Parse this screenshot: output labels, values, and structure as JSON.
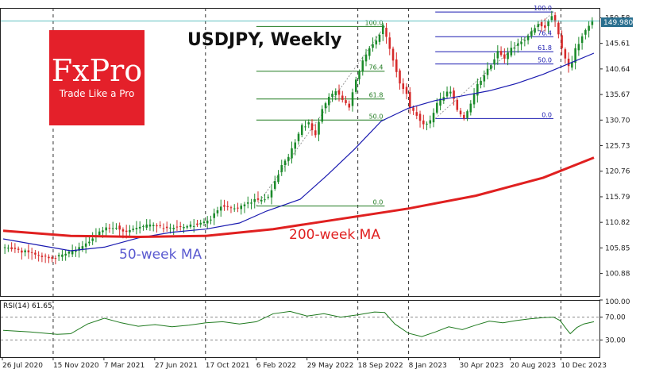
{
  "chart_data": {
    "type": "candlestick",
    "title": "USDJPY, Weekly",
    "symbol": "USDJPY",
    "timeframe": "Weekly",
    "price_axis": {
      "ticks": [
        100.88,
        105.85,
        110.82,
        115.79,
        120.76,
        125.73,
        130.7,
        135.67,
        140.64,
        145.61,
        150.58
      ],
      "ylim": [
        96.5,
        152.5
      ],
      "current_price": 149.98,
      "current_price_label": "149.980"
    },
    "x_axis": {
      "ticks": [
        "26 Jul 2020",
        "15 Nov 2020",
        "7 Mar 2021",
        "27 Jun 2021",
        "17 Oct 2021",
        "6 Feb 2022",
        "29 May 2022",
        "18 Sep 2022",
        "8 Jan 2023",
        "30 Apr 2023",
        "20 Aug 2023",
        "10 Dec 2023"
      ],
      "grid_ticks": [
        "15 Nov 2020",
        "17 Oct 2021",
        "18 Sep 2022",
        "8 Jan 2023",
        "10 Dec 2023"
      ]
    },
    "price_path": [
      [
        0,
        106.0
      ],
      [
        4,
        105.6
      ],
      [
        8,
        104.9
      ],
      [
        12,
        104.3
      ],
      [
        14,
        104.1
      ],
      [
        16,
        104.0
      ],
      [
        18,
        104.5
      ],
      [
        20,
        104.9
      ],
      [
        22,
        105.5
      ],
      [
        25,
        106.5
      ],
      [
        28,
        108.5
      ],
      [
        31,
        109.7
      ],
      [
        34,
        110.0
      ],
      [
        37,
        108.9
      ],
      [
        40,
        109.5
      ],
      [
        43,
        110.2
      ],
      [
        46,
        110.0
      ],
      [
        49,
        109.7
      ],
      [
        52,
        109.8
      ],
      [
        55,
        110.1
      ],
      [
        58,
        110.4
      ],
      [
        61,
        111.0
      ],
      [
        63,
        112.3
      ],
      [
        65,
        114.0
      ],
      [
        67,
        113.7
      ],
      [
        69,
        113.5
      ],
      [
        71,
        113.9
      ],
      [
        73,
        114.6
      ],
      [
        75,
        115.3
      ],
      [
        77,
        115.0
      ],
      [
        79,
        115.9
      ],
      [
        81,
        118.7
      ],
      [
        83,
        121.9
      ],
      [
        85,
        123.5
      ],
      [
        87,
        126.5
      ],
      [
        89,
        129.5
      ],
      [
        91,
        130.0
      ],
      [
        93,
        127.6
      ],
      [
        95,
        132.7
      ],
      [
        97,
        135.0
      ],
      [
        99,
        136.5
      ],
      [
        101,
        134.5
      ],
      [
        103,
        133.4
      ],
      [
        105,
        138.8
      ],
      [
        107,
        142.0
      ],
      [
        109,
        144.5
      ],
      [
        111,
        146.0
      ],
      [
        113,
        148.9
      ],
      [
        114,
        146.8
      ],
      [
        116,
        142.4
      ],
      [
        118,
        138.0
      ],
      [
        120,
        136.0
      ],
      [
        121,
        133.0
      ],
      [
        123,
        131.8
      ],
      [
        125,
        129.6
      ],
      [
        127,
        130.5
      ],
      [
        129,
        133.8
      ],
      [
        131,
        135.4
      ],
      [
        133,
        136.5
      ],
      [
        135,
        132.5
      ],
      [
        137,
        131.0
      ],
      [
        139,
        133.9
      ],
      [
        141,
        137.5
      ],
      [
        143,
        139.5
      ],
      [
        145,
        141.5
      ],
      [
        147,
        144.0
      ],
      [
        149,
        142.5
      ],
      [
        151,
        144.5
      ],
      [
        153,
        145.5
      ],
      [
        155,
        146.5
      ],
      [
        157,
        147.8
      ],
      [
        159,
        149.5
      ],
      [
        161,
        148.8
      ],
      [
        163,
        151.0
      ],
      [
        164,
        149.5
      ],
      [
        165,
        147.5
      ],
      [
        166,
        144.5
      ],
      [
        167,
        142.5
      ],
      [
        168,
        141.0
      ],
      [
        169,
        142.0
      ],
      [
        170,
        144.5
      ],
      [
        172,
        147.0
      ],
      [
        173,
        148.1
      ],
      [
        174,
        149.2
      ],
      [
        175,
        150.0
      ]
    ],
    "series": [
      {
        "name": "50-week MA",
        "color": "#1a1ab0",
        "points": [
          [
            0,
            107.6
          ],
          [
            20,
            105.3
          ],
          [
            30,
            106.0
          ],
          [
            40,
            107.8
          ],
          [
            50,
            108.9
          ],
          [
            60,
            109.5
          ],
          [
            70,
            110.7
          ],
          [
            78,
            113.0
          ],
          [
            88,
            115.3
          ],
          [
            96,
            120.0
          ],
          [
            104,
            125.0
          ],
          [
            112,
            130.5
          ],
          [
            120,
            133.0
          ],
          [
            128,
            134.5
          ],
          [
            136,
            135.4
          ],
          [
            144,
            136.4
          ],
          [
            152,
            137.8
          ],
          [
            160,
            139.6
          ],
          [
            168,
            141.8
          ],
          [
            175,
            143.7
          ]
        ]
      },
      {
        "name": "200-week MA",
        "color": "#e02020",
        "points": [
          [
            0,
            109.2
          ],
          [
            20,
            108.2
          ],
          [
            40,
            108.0
          ],
          [
            60,
            108.2
          ],
          [
            80,
            109.5
          ],
          [
            100,
            111.5
          ],
          [
            120,
            113.5
          ],
          [
            140,
            116.0
          ],
          [
            160,
            119.5
          ],
          [
            175,
            123.4
          ]
        ]
      }
    ],
    "annotations": [
      "50-week MA",
      "200-week MA"
    ],
    "fibonacci_1": {
      "color": "#1f7a1f",
      "x_start": 75,
      "x_end": 113,
      "levels": [
        {
          "label": "100.0",
          "price": 148.9
        },
        {
          "label": "76.4",
          "price": 140.2
        },
        {
          "label": "61.8",
          "price": 134.8
        },
        {
          "label": "50.0",
          "price": 130.7
        },
        {
          "label": "0.0",
          "price": 114.0
        }
      ]
    },
    "fibonacci_2": {
      "color": "#1a1ab0",
      "x_start": 128,
      "x_end": 163,
      "levels": [
        {
          "label": "100.0",
          "price": 151.7
        },
        {
          "label": "76.4",
          "price": 146.9
        },
        {
          "label": "61.8",
          "price": 144.0
        },
        {
          "label": "50.0",
          "price": 141.6
        },
        {
          "label": "0.0",
          "price": 131.0
        }
      ]
    },
    "rsi": {
      "label": "RSI(14) 61.65",
      "ticks": [
        30.0,
        70.0,
        100.0
      ],
      "tick_labels": [
        "30.00",
        "70.00",
        "100.00"
      ],
      "ylim": [
        0,
        100
      ],
      "color": "#1f7a1f",
      "points": [
        [
          0,
          47
        ],
        [
          8,
          44
        ],
        [
          16,
          40
        ],
        [
          20,
          41
        ],
        [
          25,
          58
        ],
        [
          30,
          68
        ],
        [
          35,
          60
        ],
        [
          40,
          54
        ],
        [
          45,
          57
        ],
        [
          50,
          53
        ],
        [
          55,
          56
        ],
        [
          60,
          60
        ],
        [
          65,
          62
        ],
        [
          70,
          58
        ],
        [
          75,
          62
        ],
        [
          80,
          76
        ],
        [
          85,
          80
        ],
        [
          90,
          72
        ],
        [
          95,
          76
        ],
        [
          100,
          70
        ],
        [
          105,
          74
        ],
        [
          110,
          79
        ],
        [
          113,
          78
        ],
        [
          116,
          58
        ],
        [
          120,
          42
        ],
        [
          124,
          36
        ],
        [
          128,
          44
        ],
        [
          132,
          53
        ],
        [
          136,
          48
        ],
        [
          140,
          56
        ],
        [
          144,
          63
        ],
        [
          148,
          60
        ],
        [
          152,
          64
        ],
        [
          156,
          67
        ],
        [
          160,
          69
        ],
        [
          163,
          70
        ],
        [
          165,
          64
        ],
        [
          167,
          48
        ],
        [
          168,
          41
        ],
        [
          170,
          52
        ],
        [
          172,
          58
        ],
        [
          175,
          62
        ]
      ]
    },
    "grid": true,
    "legend": "none"
  },
  "logo": {
    "text": "FxPro",
    "tagline": "Trade Like a Pro",
    "color": "#e4202a"
  }
}
